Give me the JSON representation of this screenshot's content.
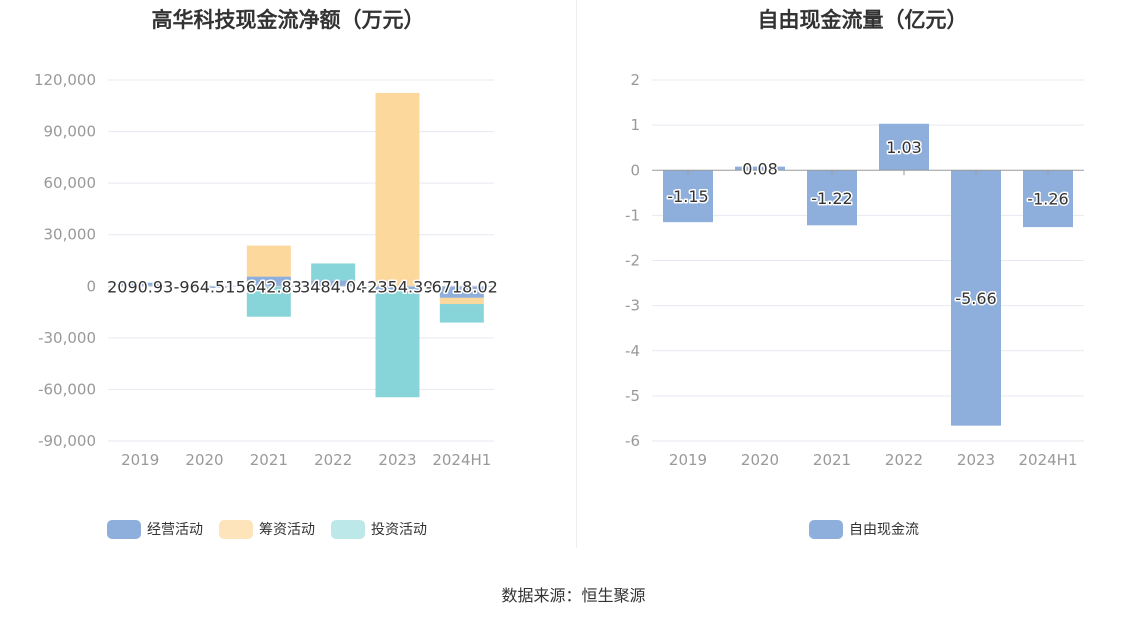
{
  "chart_data": [
    {
      "type": "bar",
      "stacked": true,
      "title": "高华科技现金流净额（万元）",
      "categories": [
        "2019",
        "2020",
        "2021",
        "2022",
        "2023",
        "2024H1"
      ],
      "ylim": [
        -90000,
        120000
      ],
      "y_ticks": [
        "120,000",
        "90,000",
        "60,000",
        "30,000",
        "0",
        "-30,000",
        "-60,000",
        "-90,000"
      ],
      "y_tick_values": [
        120000,
        90000,
        60000,
        30000,
        0,
        -30000,
        -60000,
        -90000
      ],
      "grid": true,
      "legend": "bottom",
      "series": [
        {
          "name": "经营活动",
          "color": "#8eaedb",
          "values": [
            2090.93,
            -964.51,
            5642.83,
            3484.04,
            -2354.39,
            -6718.02
          ]
        },
        {
          "name": "筹资活动",
          "color": "#fdd89c",
          "values": [
            0,
            0,
            18000,
            0,
            112500,
            -3600
          ]
        },
        {
          "name": "投资活动",
          "color": "#88d5d9",
          "values": [
            0,
            0,
            -17700,
            9800,
            -62200,
            -10800
          ]
        }
      ],
      "data_labels": [
        "2090.93",
        "-964.51",
        "5642.83",
        "3484.04",
        "-2354.39",
        "-6718.02"
      ]
    },
    {
      "type": "bar",
      "title": "自由现金流量（亿元）",
      "categories": [
        "2019",
        "2020",
        "2021",
        "2022",
        "2023",
        "2024H1"
      ],
      "ylim": [
        -6,
        2
      ],
      "y_ticks": [
        "2",
        "1",
        "0",
        "-1",
        "-2",
        "-3",
        "-4",
        "-5",
        "-6"
      ],
      "y_tick_values": [
        2,
        1,
        0,
        -1,
        -2,
        -3,
        -4,
        -5,
        -6
      ],
      "grid": true,
      "legend": "bottom",
      "series": [
        {
          "name": "自由现金流",
          "color": "#8eaedb",
          "values": [
            -1.15,
            0.08,
            -1.22,
            1.03,
            -5.66,
            -1.26
          ]
        }
      ],
      "data_labels": [
        "-1.15",
        "0.08",
        "-1.22",
        "1.03",
        "-5.66",
        "-1.26"
      ]
    }
  ],
  "source": "数据来源：恒生聚源"
}
